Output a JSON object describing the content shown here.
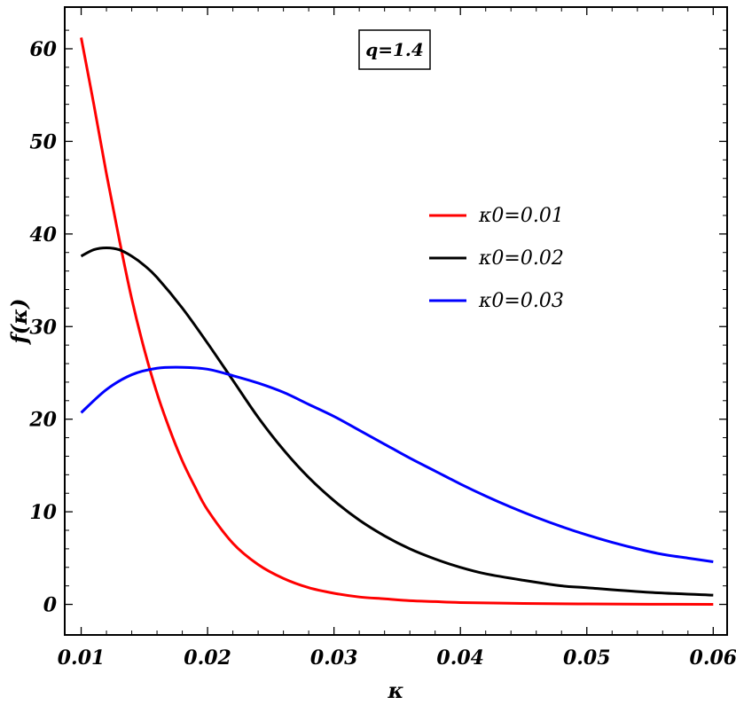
{
  "chart_data": {
    "type": "line",
    "title": "",
    "xlabel": "κ",
    "ylabel": "f(κ)",
    "xlim": [
      0.0087,
      0.0611
    ],
    "ylim": [
      -3.3,
      64.5
    ],
    "xticks": [
      0.01,
      0.02,
      0.03,
      0.04,
      0.05,
      0.06
    ],
    "xtick_labels": [
      "0.01",
      "0.02",
      "0.03",
      "0.04",
      "0.05",
      "0.06"
    ],
    "yticks": [
      0,
      10,
      20,
      30,
      40,
      50,
      60
    ],
    "ytick_labels": [
      "0",
      "10",
      "20",
      "30",
      "40",
      "50",
      "60"
    ],
    "grid": false,
    "legend_position": "middle-right",
    "annotation": "q=1.4",
    "series": [
      {
        "name": "κ0=0.01",
        "color": "#ff0000",
        "x": [
          0.01,
          0.011,
          0.012,
          0.013,
          0.014,
          0.015,
          0.016,
          0.017,
          0.018,
          0.019,
          0.02,
          0.022,
          0.024,
          0.026,
          0.028,
          0.03,
          0.032,
          0.034,
          0.036,
          0.038,
          0.04,
          0.045,
          0.05,
          0.055,
          0.06
        ],
        "y": [
          61.2,
          54.0,
          46.5,
          39.5,
          33.0,
          27.5,
          22.8,
          18.9,
          15.5,
          12.7,
          10.2,
          6.6,
          4.3,
          2.8,
          1.8,
          1.2,
          0.8,
          0.6,
          0.4,
          0.3,
          0.2,
          0.1,
          0.05,
          0.02,
          0.0
        ]
      },
      {
        "name": "κ0=0.02",
        "color": "#000000",
        "x": [
          0.01,
          0.011,
          0.012,
          0.013,
          0.014,
          0.015,
          0.016,
          0.018,
          0.02,
          0.022,
          0.024,
          0.026,
          0.028,
          0.03,
          0.032,
          0.034,
          0.036,
          0.038,
          0.04,
          0.042,
          0.045,
          0.048,
          0.05,
          0.055,
          0.06
        ],
        "y": [
          37.6,
          38.3,
          38.5,
          38.3,
          37.6,
          36.6,
          35.3,
          32.0,
          28.2,
          24.2,
          20.2,
          16.7,
          13.7,
          11.2,
          9.1,
          7.4,
          6.0,
          4.9,
          4.0,
          3.3,
          2.6,
          2.0,
          1.8,
          1.3,
          1.0
        ]
      },
      {
        "name": "κ0=0.03",
        "color": "#0000ff",
        "x": [
          0.01,
          0.012,
          0.014,
          0.016,
          0.018,
          0.02,
          0.022,
          0.024,
          0.026,
          0.028,
          0.03,
          0.032,
          0.034,
          0.036,
          0.038,
          0.04,
          0.042,
          0.044,
          0.046,
          0.048,
          0.05,
          0.052,
          0.054,
          0.056,
          0.058,
          0.06
        ],
        "y": [
          20.7,
          23.2,
          24.8,
          25.5,
          25.6,
          25.4,
          24.7,
          23.9,
          22.9,
          21.6,
          20.3,
          18.8,
          17.3,
          15.8,
          14.4,
          13.0,
          11.7,
          10.5,
          9.4,
          8.4,
          7.5,
          6.7,
          6.0,
          5.4,
          5.0,
          4.6
        ]
      }
    ]
  }
}
